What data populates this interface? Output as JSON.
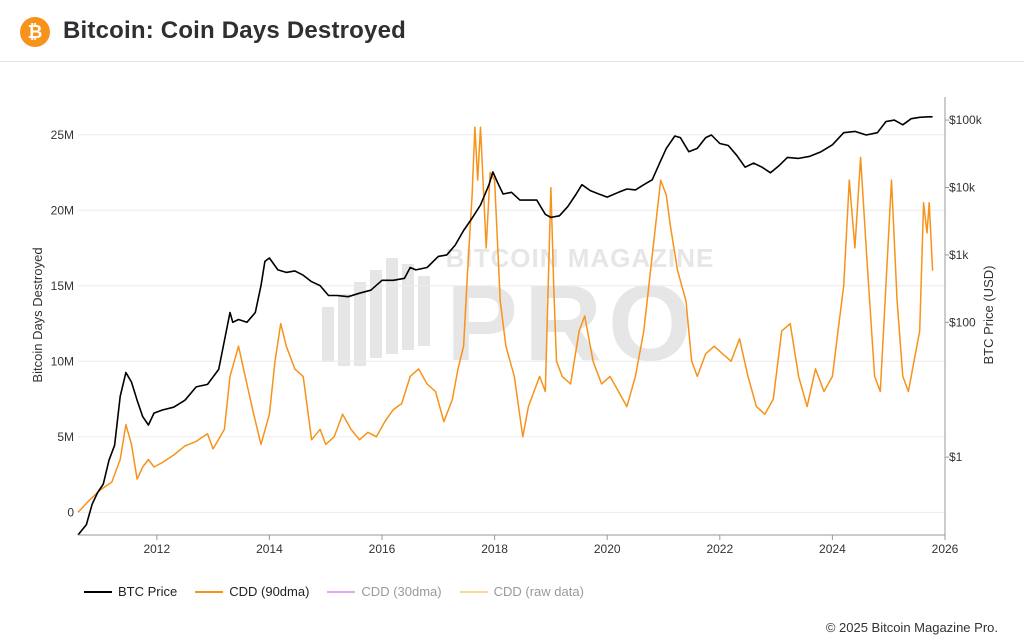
{
  "header": {
    "title": "Bitcoin: Coin Days Destroyed",
    "logo_icon": "bitcoin-icon",
    "logo_symbol": "₿",
    "logo_color": "#f7931a"
  },
  "watermark": {
    "top_text": "BITCOIN MAGAZINE",
    "main_text": "PRO"
  },
  "legend": [
    {
      "label": "BTC Price",
      "color": "#000000",
      "dim": false
    },
    {
      "label": "CDD (90dma)",
      "color": "#f7931a",
      "dim": false
    },
    {
      "label": "CDD (30dma)",
      "color": "#e0a8ee",
      "dim": true
    },
    {
      "label": "CDD (raw data)",
      "color": "#f9d79a",
      "dim": true
    }
  ],
  "footer": {
    "copyright": "© 2025 Bitcoin Magazine Pro."
  },
  "chart_data": {
    "type": "line",
    "title": "",
    "xlabel": "",
    "ylabel": "Bitcoin Days Destroyed",
    "y2label": "BTC Price (USD)",
    "xlim": [
      2010.6,
      2026.0
    ],
    "ylim": [
      -1500000,
      27500000
    ],
    "y2scale": "log",
    "y2lim": [
      0.07,
      220000
    ],
    "x_ticks": [
      2012,
      2014,
      2016,
      2018,
      2020,
      2022,
      2024,
      2026
    ],
    "x_tick_labels": [
      "2012",
      "2014",
      "2016",
      "2018",
      "2020",
      "2022",
      "2024",
      "2026"
    ],
    "y_ticks": [
      0,
      5000000,
      10000000,
      15000000,
      20000000,
      25000000
    ],
    "y_tick_labels": [
      "0",
      "5M",
      "10M",
      "15M",
      "20M",
      "25M"
    ],
    "y2_ticks": [
      1,
      100,
      1000,
      10000,
      100000
    ],
    "y2_tick_labels": [
      "$1",
      "$100",
      "$1k",
      "$10k",
      "$100k"
    ],
    "grid": true,
    "legend_position": "bottom-left",
    "series": [
      {
        "name": "BTC Price",
        "axis": "right",
        "color": "#000000",
        "x": [
          2010.6,
          2010.75,
          2010.85,
          2010.95,
          2011.05,
          2011.15,
          2011.25,
          2011.35,
          2011.45,
          2011.55,
          2011.65,
          2011.75,
          2011.85,
          2011.95,
          2012.1,
          2012.3,
          2012.5,
          2012.7,
          2012.9,
          2013.1,
          2013.3,
          2013.35,
          2013.45,
          2013.6,
          2013.75,
          2013.85,
          2013.92,
          2014.0,
          2014.15,
          2014.3,
          2014.45,
          2014.6,
          2014.75,
          2014.9,
          2015.05,
          2015.2,
          2015.4,
          2015.6,
          2015.8,
          2016.0,
          2016.2,
          2016.4,
          2016.5,
          2016.6,
          2016.8,
          2017.0,
          2017.15,
          2017.3,
          2017.45,
          2017.6,
          2017.75,
          2017.9,
          2017.97,
          2018.05,
          2018.15,
          2018.3,
          2018.45,
          2018.6,
          2018.75,
          2018.9,
          2019.0,
          2019.15,
          2019.3,
          2019.45,
          2019.55,
          2019.7,
          2019.85,
          2020.0,
          2020.2,
          2020.35,
          2020.5,
          2020.65,
          2020.8,
          2020.95,
          2021.05,
          2021.2,
          2021.3,
          2021.45,
          2021.6,
          2021.75,
          2021.85,
          2022.0,
          2022.15,
          2022.3,
          2022.45,
          2022.6,
          2022.75,
          2022.9,
          2023.05,
          2023.2,
          2023.4,
          2023.6,
          2023.8,
          2024.0,
          2024.2,
          2024.4,
          2024.6,
          2024.8,
          2024.95,
          2025.1,
          2025.25,
          2025.4,
          2025.55,
          2025.7,
          2025.78
        ],
        "values": [
          0.07,
          0.1,
          0.2,
          0.3,
          0.4,
          0.9,
          1.5,
          8.0,
          18.0,
          13.0,
          7.0,
          4.0,
          3.0,
          4.5,
          5.0,
          5.5,
          7.0,
          11.0,
          12.0,
          20.0,
          140.0,
          100.0,
          110.0,
          100.0,
          140.0,
          350.0,
          800.0,
          900.0,
          600.0,
          550.0,
          580.0,
          500.0,
          400.0,
          350.0,
          250.0,
          250.0,
          240.0,
          270.0,
          300.0,
          420.0,
          420.0,
          450.0,
          650.0,
          600.0,
          650.0,
          950.0,
          1000.0,
          1400.0,
          2300.0,
          3500.0,
          5500.0,
          11000.0,
          17000.0,
          12000.0,
          8000.0,
          8500.0,
          6500.0,
          6500.0,
          6500.0,
          4000.0,
          3600.0,
          3800.0,
          5200.0,
          8000.0,
          11000.0,
          9000.0,
          8000.0,
          7200.0,
          8500.0,
          9500.0,
          9200.0,
          11000.0,
          13000.0,
          25000.0,
          38000.0,
          58000.0,
          55000.0,
          34000.0,
          38000.0,
          55000.0,
          60000.0,
          45000.0,
          42000.0,
          30000.0,
          20000.0,
          23000.0,
          20000.0,
          16500.0,
          21000.0,
          28000.0,
          27000.0,
          29000.0,
          34000.0,
          43000.0,
          65000.0,
          68000.0,
          60000.0,
          65000.0,
          95000.0,
          100000.0,
          85000.0,
          105000.0,
          110000.0,
          112000.0,
          112000.0
        ]
      },
      {
        "name": "CDD (90dma)",
        "axis": "left",
        "color": "#f7931a",
        "x": [
          2010.6,
          2010.8,
          2011.0,
          2011.2,
          2011.35,
          2011.45,
          2011.55,
          2011.65,
          2011.75,
          2011.85,
          2011.95,
          2012.1,
          2012.3,
          2012.5,
          2012.7,
          2012.9,
          2013.0,
          2013.2,
          2013.3,
          2013.45,
          2013.6,
          2013.72,
          2013.85,
          2014.0,
          2014.1,
          2014.2,
          2014.3,
          2014.45,
          2014.6,
          2014.75,
          2014.9,
          2015.0,
          2015.15,
          2015.3,
          2015.45,
          2015.6,
          2015.75,
          2015.9,
          2016.05,
          2016.2,
          2016.35,
          2016.5,
          2016.65,
          2016.8,
          2016.95,
          2017.1,
          2017.25,
          2017.35,
          2017.45,
          2017.52,
          2017.6,
          2017.65,
          2017.7,
          2017.75,
          2017.85,
          2017.92,
          2018.0,
          2018.1,
          2018.2,
          2018.35,
          2018.5,
          2018.6,
          2018.7,
          2018.8,
          2018.9,
          2019.0,
          2019.05,
          2019.1,
          2019.2,
          2019.35,
          2019.5,
          2019.6,
          2019.75,
          2019.9,
          2020.05,
          2020.2,
          2020.35,
          2020.5,
          2020.65,
          2020.8,
          2020.95,
          2021.05,
          2021.12,
          2021.25,
          2021.4,
          2021.5,
          2021.6,
          2021.75,
          2021.9,
          2022.05,
          2022.2,
          2022.35,
          2022.5,
          2022.65,
          2022.8,
          2022.95,
          2023.1,
          2023.25,
          2023.4,
          2023.55,
          2023.7,
          2023.85,
          2024.0,
          2024.1,
          2024.2,
          2024.3,
          2024.4,
          2024.5,
          2024.6,
          2024.75,
          2024.85,
          2024.95,
          2025.05,
          2025.15,
          2025.25,
          2025.35,
          2025.45,
          2025.55,
          2025.62,
          2025.68,
          2025.72,
          2025.78
        ],
        "values": [
          0.0,
          800000.0,
          1500000.0,
          2000000.0,
          3500000.0,
          5800000.0,
          4500000.0,
          2200000.0,
          3000000.0,
          3500000.0,
          3000000.0,
          3300000.0,
          3800000.0,
          4400000.0,
          4700000.0,
          5200000.0,
          4200000.0,
          5500000.0,
          9000000.0,
          11000000.0,
          8500000.0,
          6500000.0,
          4500000.0,
          6500000.0,
          10000000.0,
          12500000.0,
          11000000.0,
          9500000.0,
          9000000.0,
          4800000.0,
          5500000.0,
          4500000.0,
          5000000.0,
          6500000.0,
          5500000.0,
          4800000.0,
          5300000.0,
          5000000.0,
          6000000.0,
          6800000.0,
          7200000.0,
          9000000.0,
          9500000.0,
          8500000.0,
          8000000.0,
          6000000.0,
          7500000.0,
          9500000.0,
          11000000.0,
          16000000.0,
          21000000.0,
          25500000.0,
          22000000.0,
          25500000.0,
          17500000.0,
          22500000.0,
          22000000.0,
          14000000.0,
          11000000.0,
          9000000.0,
          5000000.0,
          7000000.0,
          8000000.0,
          9000000.0,
          8000000.0,
          21500000.0,
          15000000.0,
          10000000.0,
          9000000.0,
          8500000.0,
          12000000.0,
          13000000.0,
          10000000.0,
          8500000.0,
          9000000.0,
          8000000.0,
          7000000.0,
          9000000.0,
          12000000.0,
          17000000.0,
          22000000.0,
          21000000.0,
          19000000.0,
          16000000.0,
          14000000.0,
          10000000.0,
          9000000.0,
          10500000.0,
          11000000.0,
          10500000.0,
          10000000.0,
          11500000.0,
          9000000.0,
          7000000.0,
          6500000.0,
          7500000.0,
          12000000.0,
          12500000.0,
          9000000.0,
          7000000.0,
          9500000.0,
          8000000.0,
          9000000.0,
          12000000.0,
          15000000.0,
          22000000.0,
          17500000.0,
          23500000.0,
          17500000.0,
          9000000.0,
          8000000.0,
          15000000.0,
          22000000.0,
          14000000.0,
          9000000.0,
          8000000.0,
          10000000.0,
          12000000.0,
          20500000.0,
          18500000.0,
          20500000.0,
          16000000.0
        ]
      }
    ]
  }
}
